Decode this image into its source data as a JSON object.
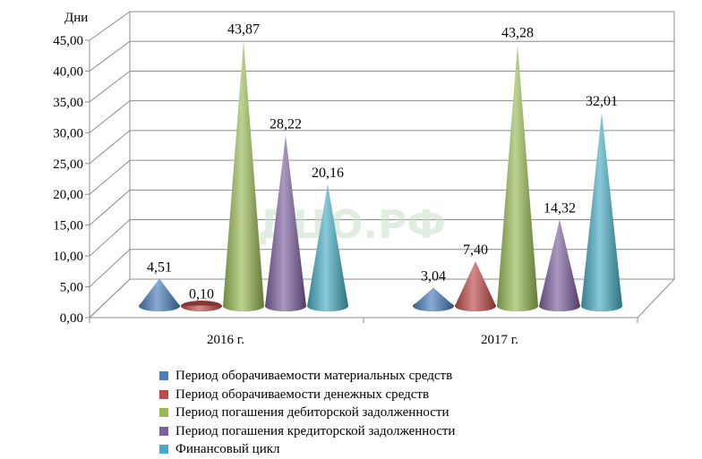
{
  "chart_data": {
    "type": "bar",
    "style": "3d-cone",
    "ylabel": "Дни",
    "ylim": [
      0,
      45
    ],
    "yticks": [
      "0,00",
      "5,00",
      "10,00",
      "15,00",
      "20,00",
      "25,00",
      "30,00",
      "35,00",
      "40,00",
      "45,00"
    ],
    "grid": true,
    "legend_position": "bottom",
    "categories": [
      "2016 г.",
      "2017 г."
    ],
    "series": [
      {
        "name": "Период оборачиваемости материальных средств",
        "values": [
          4.51,
          3.04
        ],
        "labels": [
          "4,51",
          "3,04"
        ],
        "color": "#4a7ebb"
      },
      {
        "name": "Период оборачиваемости денежных средств",
        "values": [
          0.1,
          7.4
        ],
        "labels": [
          "0,10",
          "7,40"
        ],
        "color": "#be4b48"
      },
      {
        "name": "Период погашения дебиторской задолженности",
        "values": [
          43.87,
          43.28
        ],
        "labels": [
          "43,87",
          "43,28"
        ],
        "color": "#98b954"
      },
      {
        "name": "Период погашения кредиторской задолженности",
        "values": [
          28.22,
          14.32
        ],
        "labels": [
          "28,22",
          "14,32"
        ],
        "color": "#7d60a0"
      },
      {
        "name": "Финансовый цикл",
        "values": [
          20.16,
          32.01
        ],
        "labels": [
          "20,16",
          "32,01"
        ],
        "color": "#46aac5"
      }
    ]
  },
  "watermark": "ДЦО.РФ"
}
